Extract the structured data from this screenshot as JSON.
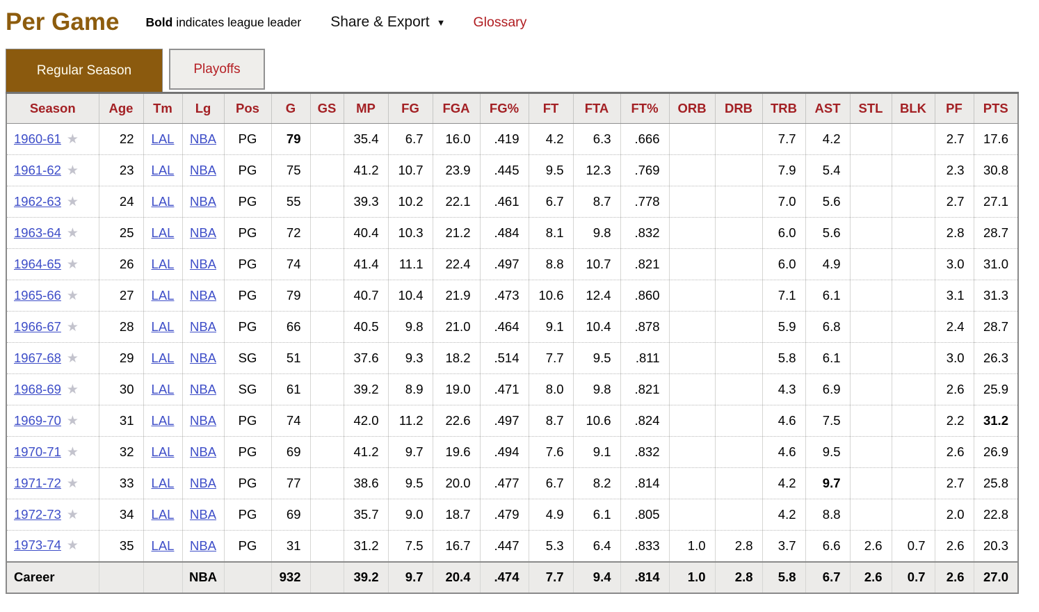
{
  "page": {
    "title": "Per Game",
    "note_bold": "Bold",
    "note_rest": " indicates league leader",
    "share_export_label": "Share & Export",
    "share_export_caret": "▼",
    "glossary_label": "Glossary"
  },
  "tabs": [
    {
      "label": "Regular Season",
      "active": true
    },
    {
      "label": "Playoffs",
      "active": false
    }
  ],
  "colors": {
    "title_brown": "#8d5c0d",
    "active_tab_bg": "#8b5a0e",
    "active_tab_text": "#fffdf0",
    "header_red": "#a32024",
    "accent_red": "#b01c20",
    "link_blue": "#3e4ec8",
    "header_bg": "#ecebe9",
    "career_bg": "#ecebe9",
    "star_gray": "#c3c3cd"
  },
  "table": {
    "columns": [
      "Season",
      "Age",
      "Tm",
      "Lg",
      "Pos",
      "G",
      "GS",
      "MP",
      "FG",
      "FGA",
      "FG%",
      "FT",
      "FTA",
      "FT%",
      "ORB",
      "DRB",
      "TRB",
      "AST",
      "STL",
      "BLK",
      "PF",
      "PTS"
    ],
    "star_icon": "★",
    "rows": [
      {
        "star": true,
        "bold": [
          5
        ],
        "cells": [
          "1960-61",
          "22",
          "LAL",
          "NBA",
          "PG",
          "79",
          "",
          "35.4",
          "6.7",
          "16.0",
          ".419",
          "4.2",
          "6.3",
          ".666",
          "",
          "",
          "7.7",
          "4.2",
          "",
          "",
          "2.7",
          "17.6"
        ]
      },
      {
        "star": true,
        "bold": [],
        "cells": [
          "1961-62",
          "23",
          "LAL",
          "NBA",
          "PG",
          "75",
          "",
          "41.2",
          "10.7",
          "23.9",
          ".445",
          "9.5",
          "12.3",
          ".769",
          "",
          "",
          "7.9",
          "5.4",
          "",
          "",
          "2.3",
          "30.8"
        ]
      },
      {
        "star": true,
        "bold": [],
        "cells": [
          "1962-63",
          "24",
          "LAL",
          "NBA",
          "PG",
          "55",
          "",
          "39.3",
          "10.2",
          "22.1",
          ".461",
          "6.7",
          "8.7",
          ".778",
          "",
          "",
          "7.0",
          "5.6",
          "",
          "",
          "2.7",
          "27.1"
        ]
      },
      {
        "star": true,
        "bold": [],
        "cells": [
          "1963-64",
          "25",
          "LAL",
          "NBA",
          "PG",
          "72",
          "",
          "40.4",
          "10.3",
          "21.2",
          ".484",
          "8.1",
          "9.8",
          ".832",
          "",
          "",
          "6.0",
          "5.6",
          "",
          "",
          "2.8",
          "28.7"
        ]
      },
      {
        "star": true,
        "bold": [],
        "cells": [
          "1964-65",
          "26",
          "LAL",
          "NBA",
          "PG",
          "74",
          "",
          "41.4",
          "11.1",
          "22.4",
          ".497",
          "8.8",
          "10.7",
          ".821",
          "",
          "",
          "6.0",
          "4.9",
          "",
          "",
          "3.0",
          "31.0"
        ]
      },
      {
        "star": true,
        "bold": [],
        "cells": [
          "1965-66",
          "27",
          "LAL",
          "NBA",
          "PG",
          "79",
          "",
          "40.7",
          "10.4",
          "21.9",
          ".473",
          "10.6",
          "12.4",
          ".860",
          "",
          "",
          "7.1",
          "6.1",
          "",
          "",
          "3.1",
          "31.3"
        ]
      },
      {
        "star": true,
        "bold": [],
        "cells": [
          "1966-67",
          "28",
          "LAL",
          "NBA",
          "PG",
          "66",
          "",
          "40.5",
          "9.8",
          "21.0",
          ".464",
          "9.1",
          "10.4",
          ".878",
          "",
          "",
          "5.9",
          "6.8",
          "",
          "",
          "2.4",
          "28.7"
        ]
      },
      {
        "star": true,
        "bold": [],
        "cells": [
          "1967-68",
          "29",
          "LAL",
          "NBA",
          "SG",
          "51",
          "",
          "37.6",
          "9.3",
          "18.2",
          ".514",
          "7.7",
          "9.5",
          ".811",
          "",
          "",
          "5.8",
          "6.1",
          "",
          "",
          "3.0",
          "26.3"
        ]
      },
      {
        "star": true,
        "bold": [],
        "cells": [
          "1968-69",
          "30",
          "LAL",
          "NBA",
          "SG",
          "61",
          "",
          "39.2",
          "8.9",
          "19.0",
          ".471",
          "8.0",
          "9.8",
          ".821",
          "",
          "",
          "4.3",
          "6.9",
          "",
          "",
          "2.6",
          "25.9"
        ]
      },
      {
        "star": true,
        "bold": [
          21
        ],
        "cells": [
          "1969-70",
          "31",
          "LAL",
          "NBA",
          "PG",
          "74",
          "",
          "42.0",
          "11.2",
          "22.6",
          ".497",
          "8.7",
          "10.6",
          ".824",
          "",
          "",
          "4.6",
          "7.5",
          "",
          "",
          "2.2",
          "31.2"
        ]
      },
      {
        "star": true,
        "bold": [],
        "cells": [
          "1970-71",
          "32",
          "LAL",
          "NBA",
          "PG",
          "69",
          "",
          "41.2",
          "9.7",
          "19.6",
          ".494",
          "7.6",
          "9.1",
          ".832",
          "",
          "",
          "4.6",
          "9.5",
          "",
          "",
          "2.6",
          "26.9"
        ]
      },
      {
        "star": true,
        "bold": [
          17
        ],
        "cells": [
          "1971-72",
          "33",
          "LAL",
          "NBA",
          "PG",
          "77",
          "",
          "38.6",
          "9.5",
          "20.0",
          ".477",
          "6.7",
          "8.2",
          ".814",
          "",
          "",
          "4.2",
          "9.7",
          "",
          "",
          "2.7",
          "25.8"
        ]
      },
      {
        "star": true,
        "bold": [],
        "cells": [
          "1972-73",
          "34",
          "LAL",
          "NBA",
          "PG",
          "69",
          "",
          "35.7",
          "9.0",
          "18.7",
          ".479",
          "4.9",
          "6.1",
          ".805",
          "",
          "",
          "4.2",
          "8.8",
          "",
          "",
          "2.0",
          "22.8"
        ]
      },
      {
        "star": true,
        "bold": [],
        "cells": [
          "1973-74",
          "35",
          "LAL",
          "NBA",
          "PG",
          "31",
          "",
          "31.2",
          "7.5",
          "16.7",
          ".447",
          "5.3",
          "6.4",
          ".833",
          "1.0",
          "2.8",
          "3.7",
          "6.6",
          "2.6",
          "0.7",
          "2.6",
          "20.3"
        ]
      }
    ],
    "career": {
      "cells": [
        "Career",
        "",
        "",
        "NBA",
        "",
        "932",
        "",
        "39.2",
        "9.7",
        "20.4",
        ".474",
        "7.7",
        "9.4",
        ".814",
        "1.0",
        "2.8",
        "5.8",
        "6.7",
        "2.6",
        "0.7",
        "2.6",
        "27.0"
      ]
    }
  }
}
